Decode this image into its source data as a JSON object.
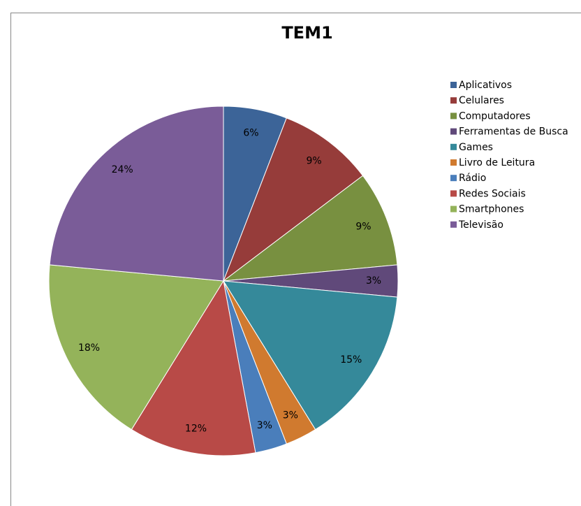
{
  "chart_data": {
    "type": "pie",
    "title": "TEM1",
    "categories": [
      "Aplicativos",
      "Celulares",
      "Computadores",
      "Ferramentas de Busca",
      "Games",
      "Livro de Leitura",
      "Rádio",
      "Redes Sociais",
      "Smartphones",
      "Televisão"
    ],
    "values": [
      6,
      9,
      9,
      3,
      15,
      3,
      3,
      12,
      18,
      24
    ],
    "value_labels": [
      "6%",
      "9%",
      "9%",
      "3%",
      "15%",
      "3%",
      "3%",
      "12%",
      "18%",
      "24%"
    ],
    "colors": [
      "#3c6498",
      "#963c3a",
      "#789040",
      "#60497a",
      "#35899a",
      "#d07a2f",
      "#4a7ebb",
      "#b84a47",
      "#94b35a",
      "#7a5c98"
    ],
    "legend": "right"
  }
}
